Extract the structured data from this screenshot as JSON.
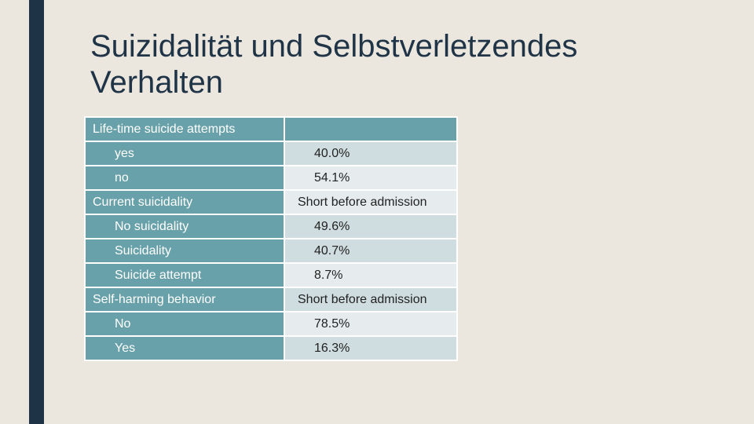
{
  "slide": {
    "title_line1": "Suizidalität und Selbstverletzendes",
    "title_line2": "Verhalten"
  },
  "table": {
    "sections": [
      {
        "header": "Life-time suicide attempts",
        "header_value": "",
        "rows": [
          {
            "label": "yes",
            "value": "40.0%"
          },
          {
            "label": "no",
            "value": "54.1%"
          }
        ]
      },
      {
        "header": "Current suicidality",
        "header_value": "Short before admission",
        "rows": [
          {
            "label": "No suicidality",
            "value": "49.6%"
          },
          {
            "label": "Suicidality",
            "value": "40.7%"
          },
          {
            "label": "Suicide attempt",
            "value": "8.7%"
          }
        ]
      },
      {
        "header": "Self-harming behavior",
        "header_value": "Short before admission",
        "rows": [
          {
            "label": "No",
            "value": "78.5%"
          },
          {
            "label": "Yes",
            "value": "16.3%"
          }
        ]
      }
    ]
  }
}
